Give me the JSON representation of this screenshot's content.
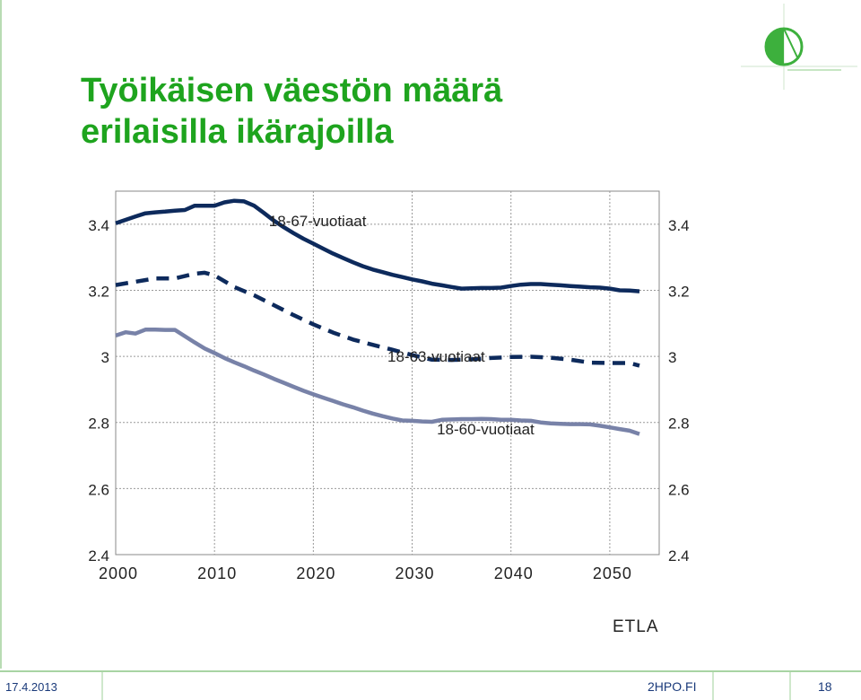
{
  "slide": {
    "title_line1": "Työikäisen väestön määrä",
    "title_line2": "erilaisilla ikärajoilla",
    "source": "ETLA",
    "footer": {
      "date": "17.4.2013",
      "site": "2HPO.FI",
      "page": "18"
    }
  },
  "colors": {
    "title": "#1ea41e",
    "series_67": "#0d2a5c",
    "series_63": "#0d2a5c",
    "series_60": "#7882a8",
    "grid": "#999999"
  },
  "chart_data": {
    "type": "line",
    "title": "",
    "xlabel": "",
    "ylabel": "",
    "xlim": [
      2000,
      2055
    ],
    "ylim": [
      2.4,
      3.5
    ],
    "x_ticks": [
      "2000",
      "2010",
      "2020",
      "2030",
      "2040",
      "2050"
    ],
    "y_ticks": [
      "2.4",
      "2.6",
      "2.8",
      "3",
      "3.2",
      "3.4"
    ],
    "grid": true,
    "series": [
      {
        "name": "18-67-vuotiaat",
        "style": "solid",
        "x": [
          2000,
          2001,
          2002,
          2003,
          2004,
          2005,
          2006,
          2007,
          2008,
          2009,
          2010,
          2011,
          2012,
          2013,
          2014,
          2015,
          2016,
          2017,
          2018,
          2019,
          2020,
          2021,
          2022,
          2023,
          2024,
          2025,
          2026,
          2027,
          2028,
          2029,
          2030,
          2031,
          2032,
          2033,
          2034,
          2035,
          2036,
          2037,
          2038,
          2039,
          2040,
          2041,
          2042,
          2043,
          2044,
          2045,
          2046,
          2047,
          2048,
          2049,
          2050,
          2051,
          2052,
          2053
        ],
        "values": [
          3.403,
          3.413,
          3.423,
          3.433,
          3.436,
          3.438,
          3.441,
          3.443,
          3.456,
          3.456,
          3.456,
          3.466,
          3.471,
          3.469,
          3.456,
          3.434,
          3.411,
          3.391,
          3.373,
          3.356,
          3.341,
          3.326,
          3.311,
          3.298,
          3.285,
          3.273,
          3.263,
          3.255,
          3.247,
          3.24,
          3.233,
          3.227,
          3.22,
          3.215,
          3.21,
          3.205,
          3.206,
          3.207,
          3.207,
          3.208,
          3.213,
          3.217,
          3.219,
          3.219,
          3.217,
          3.215,
          3.213,
          3.211,
          3.209,
          3.208,
          3.205,
          3.2,
          3.199,
          3.197
        ]
      },
      {
        "name": "18-63-vuotiaat",
        "style": "dashed",
        "x": [
          2000,
          2002,
          2004,
          2006,
          2008,
          2009,
          2010,
          2012,
          2014,
          2016,
          2018,
          2020,
          2022,
          2024,
          2026,
          2028,
          2030,
          2032,
          2034,
          2036,
          2038,
          2040,
          2042,
          2044,
          2046,
          2048,
          2050,
          2052,
          2053
        ],
        "values": [
          3.216,
          3.226,
          3.236,
          3.236,
          3.25,
          3.253,
          3.245,
          3.21,
          3.185,
          3.155,
          3.125,
          3.097,
          3.072,
          3.051,
          3.035,
          3.02,
          3.004,
          2.99,
          2.989,
          2.991,
          2.995,
          2.998,
          2.999,
          2.996,
          2.99,
          2.981,
          2.98,
          2.98,
          2.972
        ]
      },
      {
        "name": "18-60-vuotiaat",
        "style": "solid",
        "x": [
          2000,
          2001,
          2002,
          2003,
          2004,
          2005,
          2006,
          2007,
          2008,
          2009,
          2010,
          2011,
          2012,
          2013,
          2014,
          2015,
          2016,
          2017,
          2018,
          2019,
          2020,
          2021,
          2022,
          2023,
          2024,
          2025,
          2026,
          2027,
          2028,
          2029,
          2030,
          2031,
          2032,
          2033,
          2034,
          2035,
          2036,
          2037,
          2038,
          2039,
          2040,
          2041,
          2042,
          2043,
          2044,
          2045,
          2046,
          2047,
          2048,
          2049,
          2050,
          2051,
          2052,
          2053
        ],
        "values": [
          3.063,
          3.073,
          3.069,
          3.081,
          3.081,
          3.08,
          3.08,
          3.061,
          3.042,
          3.024,
          3.01,
          2.995,
          2.982,
          2.97,
          2.957,
          2.945,
          2.932,
          2.92,
          2.908,
          2.896,
          2.885,
          2.875,
          2.865,
          2.855,
          2.846,
          2.836,
          2.827,
          2.819,
          2.812,
          2.806,
          2.805,
          2.803,
          2.802,
          2.808,
          2.809,
          2.81,
          2.81,
          2.811,
          2.81,
          2.808,
          2.808,
          2.806,
          2.805,
          2.8,
          2.797,
          2.796,
          2.795,
          2.795,
          2.794,
          2.79,
          2.785,
          2.78,
          2.775,
          2.765
        ]
      }
    ],
    "annotations": [
      {
        "text": "18-67-vuotiaat",
        "x": 2015.5,
        "y": 3.41
      },
      {
        "text": "18-63-vuotiaat",
        "x": 2027.5,
        "y": 3.0
      },
      {
        "text": "18-60-vuotiaat",
        "x": 2032.5,
        "y": 2.78
      }
    ]
  }
}
